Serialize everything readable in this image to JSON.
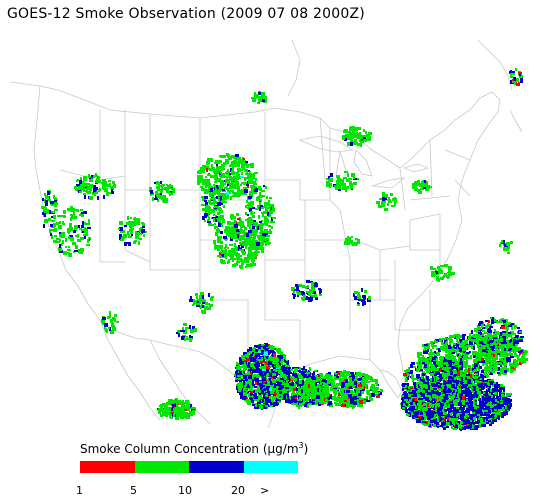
{
  "title": "GOES-12 Smoke Observation (2009 07 08  2000Z)",
  "legend": {
    "title_prefix": "Smoke Column Concentration (",
    "unit_mu": "μ",
    "unit_mid": "g/m",
    "unit_sup": "3",
    "title_suffix": ")",
    "colors": [
      "#ff0000",
      "#00e600",
      "#0000cc",
      "#00ffff"
    ],
    "ticks": [
      "1",
      "5",
      "10",
      "20",
      ">"
    ]
  },
  "map_colors": {
    "boundaries": "#c8c8c8",
    "low": "#ff0000",
    "moderate": "#00e600",
    "high": "#0000cc",
    "very_high": "#00ffff"
  }
}
